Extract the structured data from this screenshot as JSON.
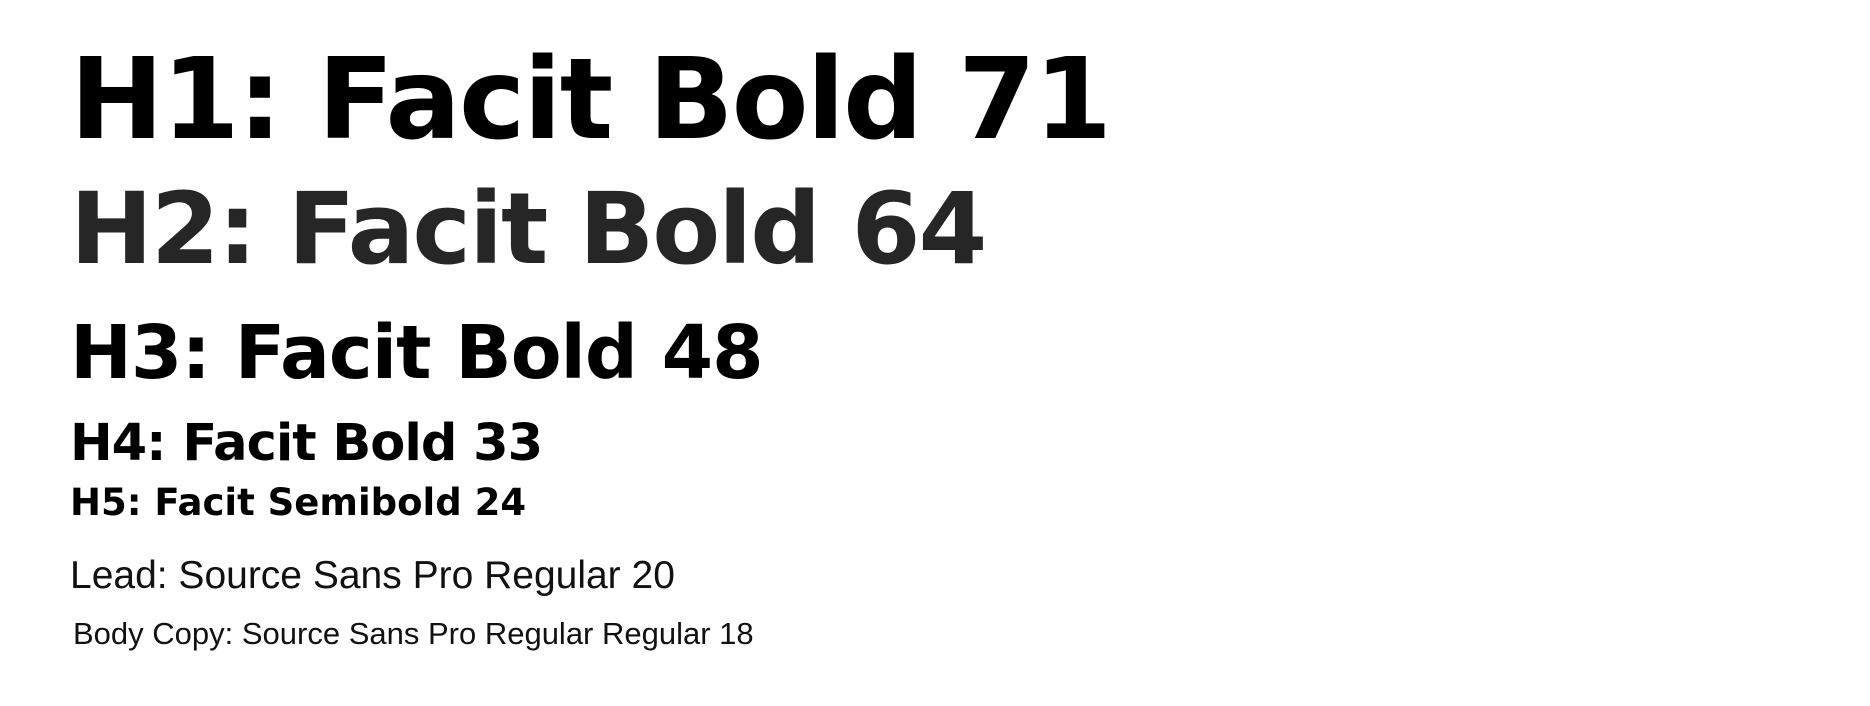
{
  "typography_scale": {
    "h1": "H1: Facit Bold 71",
    "h2": "H2: Facit Bold 64",
    "h3": "H3: Facit Bold 48",
    "h4": "H4: Facit Bold 33",
    "h5": "H5: Facit Semibold 24",
    "lead": "Lead: Source Sans Pro Regular 20",
    "body": "Body Copy: Source Sans Pro Regular Regular 18"
  },
  "colors": {
    "background": "#ffffff",
    "primary_text": "#000000",
    "h2_text": "#262626"
  }
}
